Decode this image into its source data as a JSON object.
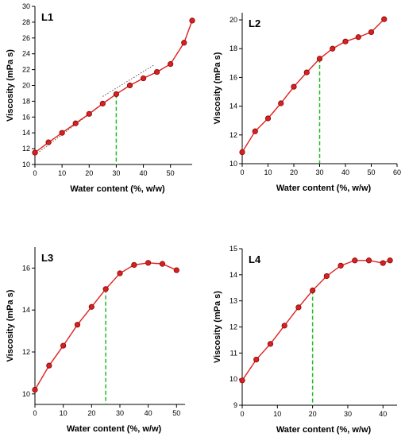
{
  "colors": {
    "series": "#e02020",
    "marker_fill": "#d42222",
    "vertical_marker": "#22bb22"
  },
  "chart_data": [
    {
      "type": "line",
      "panel_label": "L1",
      "xlabel": "Water content (%, w/w)",
      "ylabel": "Viscosity (mPa s)",
      "xlim": [
        0,
        58
      ],
      "ylim": [
        10,
        30
      ],
      "xticks": [
        0,
        10,
        20,
        30,
        40,
        50
      ],
      "yticks": [
        10,
        12,
        14,
        16,
        18,
        20,
        22,
        24,
        26,
        28,
        30
      ],
      "x": [
        0,
        5,
        10,
        15,
        20,
        25,
        30,
        35,
        40,
        45,
        50,
        55,
        58
      ],
      "y": [
        11.5,
        12.8,
        14.0,
        15.2,
        16.4,
        17.7,
        18.9,
        20.0,
        20.9,
        21.7,
        22.7,
        25.4,
        28.2
      ],
      "vertical_marker_x": 30,
      "trend_lines": [
        {
          "x": [
            0,
            31
          ],
          "y": [
            11.2,
            19.2
          ]
        },
        {
          "x": [
            25,
            44
          ],
          "y": [
            18.6,
            22.6
          ]
        }
      ]
    },
    {
      "type": "line",
      "panel_label": "L2",
      "xlabel": "Water content (%, w/w)",
      "ylabel": "Viscosity (mPa s)",
      "xlim": [
        0,
        60
      ],
      "ylim": [
        10,
        20.5
      ],
      "xticks": [
        0,
        10,
        20,
        30,
        40,
        50,
        60
      ],
      "yticks": [
        10,
        12,
        14,
        16,
        18,
        20
      ],
      "x": [
        0,
        5,
        10,
        15,
        20,
        25,
        30,
        35,
        40,
        45,
        50,
        55
      ],
      "y": [
        10.8,
        12.25,
        13.15,
        14.2,
        15.35,
        16.35,
        17.3,
        18.0,
        18.5,
        18.8,
        19.15,
        20.05
      ],
      "vertical_marker_x": 30
    },
    {
      "type": "line",
      "panel_label": "L3",
      "xlabel": "Water content (%, w/w)",
      "ylabel": "Viscosity (mPa s)",
      "xlim": [
        0,
        53
      ],
      "ylim": [
        9.5,
        17
      ],
      "xticks": [
        0,
        10,
        20,
        30,
        40,
        50
      ],
      "yticks": [
        10,
        12,
        14,
        16
      ],
      "x": [
        0,
        5,
        10,
        15,
        20,
        25,
        30,
        35,
        40,
        45,
        50
      ],
      "y": [
        10.2,
        11.35,
        12.3,
        13.3,
        14.15,
        15.0,
        15.75,
        16.15,
        16.25,
        16.2,
        15.9
      ],
      "vertical_marker_x": 25
    },
    {
      "type": "line",
      "panel_label": "L4",
      "xlabel": "Water content (%, w/w)",
      "ylabel": "Viscosity (mPa s)",
      "xlim": [
        0,
        44
      ],
      "ylim": [
        9,
        15
      ],
      "xticks": [
        0,
        10,
        20,
        30,
        40
      ],
      "yticks": [
        9,
        10,
        11,
        12,
        13,
        14,
        15
      ],
      "x": [
        0,
        4,
        8,
        12,
        16,
        20,
        24,
        28,
        32,
        36,
        40,
        42
      ],
      "y": [
        9.95,
        10.75,
        11.35,
        12.05,
        12.75,
        13.4,
        13.95,
        14.35,
        14.55,
        14.55,
        14.45,
        14.55
      ],
      "vertical_marker_x": 20
    }
  ]
}
